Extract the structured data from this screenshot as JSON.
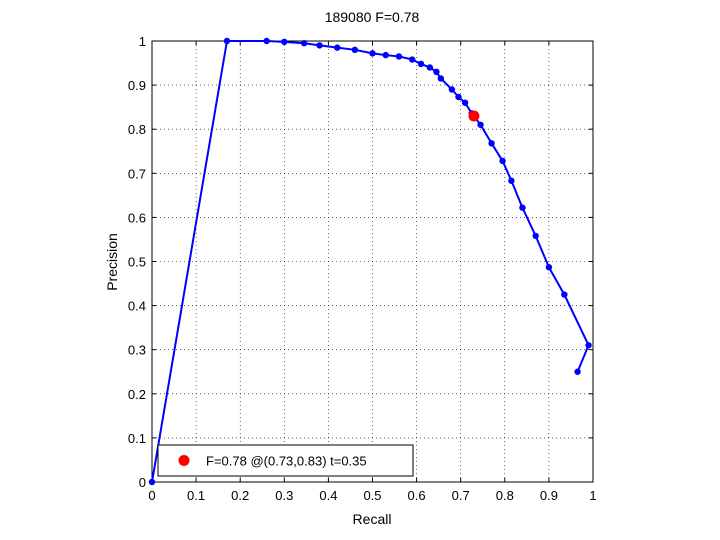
{
  "chart_data": {
    "type": "line",
    "title": "189080 F=0.78",
    "xlabel": "Recall",
    "ylabel": "Precision",
    "xlim": [
      0,
      1
    ],
    "ylim": [
      0,
      1
    ],
    "xticks": [
      "0",
      "0.1",
      "0.2",
      "0.3",
      "0.4",
      "0.5",
      "0.6",
      "0.7",
      "0.8",
      "0.9",
      "1"
    ],
    "yticks": [
      "0",
      "0.1",
      "0.2",
      "0.3",
      "0.4",
      "0.5",
      "0.6",
      "0.7",
      "0.8",
      "0.9",
      "1"
    ],
    "grid": true,
    "legend_position": "bottom-left",
    "line_color": "#0000ff",
    "highlight_color": "#ff0000",
    "series": [
      {
        "x": [
          0,
          0.17,
          0.26,
          0.3,
          0.345,
          0.38,
          0.42,
          0.46,
          0.5,
          0.53,
          0.56,
          0.59,
          0.61,
          0.63,
          0.645,
          0.655,
          0.68,
          0.695,
          0.71,
          0.725,
          0.745,
          0.77,
          0.795,
          0.815,
          0.84,
          0.87,
          0.9,
          0.935,
          0.99,
          0.965
        ],
        "y": [
          0,
          1,
          1,
          0.998,
          0.995,
          0.99,
          0.985,
          0.98,
          0.972,
          0.968,
          0.965,
          0.958,
          0.948,
          0.94,
          0.93,
          0.915,
          0.89,
          0.873,
          0.86,
          0.836,
          0.81,
          0.768,
          0.728,
          0.683,
          0.622,
          0.558,
          0.487,
          0.425,
          0.31,
          0.25
        ]
      }
    ],
    "highlight_point": {
      "x": 0.73,
      "y": 0.83
    },
    "legend": {
      "label": "F=0.78 @(0.73,0.83) t=0.35"
    }
  }
}
